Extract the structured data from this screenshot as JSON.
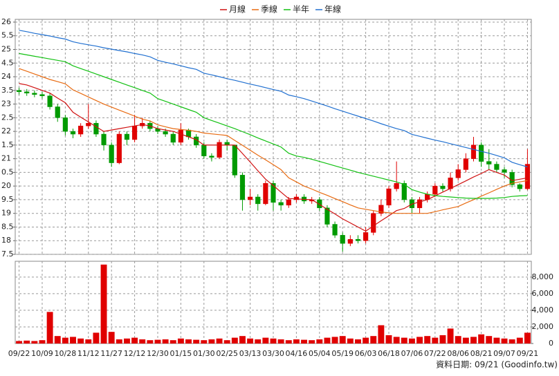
{
  "chart_data": [
    {
      "type": "candlestick",
      "categories": [
        "09/22",
        null,
        null,
        "10/09",
        null,
        null,
        "10/28",
        null,
        null,
        "11/12",
        null,
        null,
        "11/27",
        null,
        null,
        "12/12",
        null,
        null,
        "12/30",
        null,
        null,
        "01/15",
        null,
        null,
        "01/30",
        null,
        null,
        "02/25",
        null,
        null,
        "03/13",
        null,
        null,
        "03/30",
        null,
        null,
        "04/16",
        null,
        null,
        "05/04",
        null,
        null,
        "05/19",
        null,
        null,
        "06/03",
        null,
        null,
        "06/18",
        null,
        null,
        "07/06",
        null,
        null,
        "07/22",
        null,
        null,
        "08/06",
        null,
        null,
        "08/21",
        null,
        null,
        "09/07",
        null,
        null,
        "09/21"
      ],
      "open": [
        23.5,
        23.45,
        23.4,
        23.35,
        23.3,
        22.9,
        22.5,
        22.0,
        21.9,
        22.2,
        22.3,
        21.9,
        21.5,
        20.85,
        21.9,
        21.7,
        22.2,
        22.3,
        22.1,
        22.0,
        21.9,
        21.6,
        22.05,
        21.8,
        21.5,
        21.1,
        21.05,
        21.6,
        21.5,
        20.4,
        19.5,
        19.6,
        19.35,
        20.1,
        19.4,
        19.3,
        19.5,
        19.6,
        19.45,
        19.5,
        19.2,
        18.6,
        18.2,
        17.9,
        18.05,
        18.0,
        18.3,
        19.0,
        19.3,
        19.9,
        20.1,
        19.5,
        19.2,
        19.5,
        19.7,
        20.0,
        19.9,
        20.3,
        20.6,
        21.0,
        21.5,
        20.9,
        20.8,
        20.6,
        20.5,
        20.05,
        19.9
      ],
      "high": [
        23.6,
        23.55,
        23.5,
        23.45,
        23.4,
        23.0,
        22.6,
        22.1,
        22.3,
        23.0,
        22.4,
        22.0,
        21.6,
        22.0,
        22.0,
        22.6,
        22.5,
        22.4,
        22.2,
        22.1,
        22.0,
        22.3,
        22.1,
        21.9,
        21.6,
        21.2,
        21.7,
        21.7,
        21.5,
        20.5,
        19.9,
        19.7,
        20.2,
        20.2,
        19.5,
        19.6,
        19.7,
        19.7,
        19.6,
        19.6,
        19.3,
        18.7,
        18.3,
        18.2,
        18.2,
        18.5,
        19.1,
        19.5,
        20.0,
        20.9,
        20.2,
        19.6,
        19.6,
        19.8,
        20.1,
        20.1,
        20.5,
        20.8,
        21.2,
        21.8,
        21.6,
        21.35,
        20.9,
        20.7,
        20.6,
        20.1,
        21.35
      ],
      "low": [
        23.35,
        23.3,
        23.25,
        23.2,
        22.8,
        22.35,
        21.85,
        21.75,
        21.8,
        22.1,
        21.8,
        21.3,
        20.7,
        20.8,
        21.5,
        21.6,
        22.1,
        22.0,
        21.9,
        21.8,
        21.5,
        21.5,
        21.7,
        21.4,
        21.0,
        20.9,
        21.0,
        21.3,
        20.3,
        19.1,
        19.3,
        19.1,
        19.3,
        19.1,
        19.1,
        19.2,
        19.4,
        19.35,
        19.35,
        19.1,
        18.5,
        18.1,
        17.6,
        17.8,
        17.9,
        17.9,
        18.2,
        18.9,
        19.2,
        19.8,
        19.4,
        19.0,
        19.0,
        19.4,
        19.6,
        19.8,
        19.8,
        20.2,
        20.5,
        20.9,
        20.7,
        20.6,
        20.5,
        20.3,
        19.95,
        19.8,
        19.85
      ],
      "close": [
        23.45,
        23.4,
        23.35,
        23.3,
        22.9,
        22.5,
        22.0,
        21.9,
        22.2,
        22.3,
        21.9,
        21.5,
        20.85,
        21.9,
        21.7,
        22.2,
        22.3,
        22.1,
        22.0,
        21.9,
        21.6,
        22.05,
        21.8,
        21.5,
        21.1,
        21.05,
        21.6,
        21.5,
        20.4,
        19.5,
        19.6,
        19.35,
        20.1,
        19.4,
        19.3,
        19.5,
        19.6,
        19.45,
        19.5,
        19.2,
        18.6,
        18.2,
        17.9,
        18.05,
        18.0,
        18.3,
        19.0,
        19.3,
        19.9,
        20.1,
        19.5,
        19.2,
        19.5,
        19.7,
        20.0,
        19.9,
        20.3,
        20.6,
        21.0,
        21.5,
        20.9,
        20.8,
        20.6,
        20.5,
        20.05,
        19.9,
        20.8
      ],
      "up_color": "#e00000",
      "down_color": "#009a00",
      "series": [
        {
          "name": "月線",
          "color": "#d01010",
          "values": [
            23.75,
            23.7,
            23.6,
            23.5,
            23.4,
            23.22,
            23.05,
            22.7,
            22.52,
            22.35,
            22.17,
            22.0,
            22.05,
            22.1,
            22.15,
            22.2,
            22.25,
            22.2,
            22.1,
            22.05,
            22.0,
            21.9,
            21.8,
            21.7,
            21.5,
            21.5,
            21.5,
            21.5,
            21.5,
            21.19,
            20.88,
            20.56,
            20.25,
            20.02,
            19.78,
            19.54,
            19.53,
            19.51,
            19.5,
            19.33,
            19.15,
            18.98,
            18.8,
            18.65,
            18.5,
            18.35,
            18.54,
            18.73,
            18.91,
            19.1,
            19.18,
            19.34,
            19.42,
            19.5,
            19.64,
            19.78,
            19.91,
            20.05,
            20.19,
            20.33,
            20.46,
            20.6,
            20.5,
            20.4,
            20.2,
            20.25,
            20.3
          ]
        },
        {
          "name": "季線",
          "color": "#e86a10",
          "values": [
            24.3,
            24.2,
            24.1,
            24.0,
            23.9,
            23.82,
            23.74,
            23.52,
            23.39,
            23.26,
            23.13,
            23.0,
            22.89,
            22.78,
            22.67,
            22.56,
            22.45,
            22.38,
            22.24,
            22.17,
            22.1,
            22.07,
            22.04,
            22.0,
            21.94,
            21.91,
            21.88,
            21.85,
            21.67,
            21.49,
            21.31,
            21.13,
            20.96,
            20.78,
            20.6,
            20.3,
            20.15,
            20.0,
            19.89,
            19.77,
            19.66,
            19.54,
            19.43,
            19.31,
            19.2,
            19.15,
            19.1,
            19.05,
            19.02,
            19.0,
            19.0,
            19.0,
            19.0,
            19.0,
            19.06,
            19.13,
            19.19,
            19.25,
            19.38,
            19.5,
            19.63,
            19.75,
            19.88,
            20.0,
            20.1,
            20.15,
            20.2
          ]
        },
        {
          "name": "半年",
          "color": "#10c010",
          "values": [
            24.85,
            24.8,
            24.75,
            24.7,
            24.65,
            24.6,
            24.55,
            24.4,
            24.3,
            24.2,
            24.1,
            24.0,
            23.9,
            23.8,
            23.7,
            23.6,
            23.5,
            23.4,
            23.2,
            23.1,
            23.0,
            22.9,
            22.8,
            22.7,
            22.5,
            22.4,
            22.3,
            22.2,
            22.1,
            21.99,
            21.88,
            21.76,
            21.65,
            21.54,
            21.43,
            21.2,
            21.1,
            21.05,
            20.98,
            20.9,
            20.82,
            20.74,
            20.66,
            20.58,
            20.5,
            20.43,
            20.36,
            20.29,
            20.22,
            20.15,
            20.06,
            19.87,
            19.78,
            19.7,
            19.65,
            19.62,
            19.6,
            19.58,
            19.56,
            19.55,
            19.55,
            19.55,
            19.56,
            19.58,
            19.62,
            19.64,
            19.65
          ]
        },
        {
          "name": "年線",
          "color": "#1f6fd0",
          "values": [
            25.7,
            25.65,
            25.59,
            25.54,
            25.49,
            25.43,
            25.38,
            25.28,
            25.22,
            25.17,
            25.12,
            25.06,
            25.01,
            24.96,
            24.91,
            24.85,
            24.8,
            24.73,
            24.6,
            24.53,
            24.47,
            24.4,
            24.33,
            24.27,
            24.13,
            24.07,
            24.0,
            23.93,
            23.87,
            23.8,
            23.73,
            23.67,
            23.6,
            23.53,
            23.47,
            23.33,
            23.27,
            23.2,
            23.11,
            23.02,
            22.93,
            22.83,
            22.74,
            22.65,
            22.56,
            22.47,
            22.38,
            22.28,
            22.19,
            22.1,
            22.03,
            21.89,
            21.82,
            21.75,
            21.68,
            21.62,
            21.55,
            21.48,
            21.41,
            21.34,
            21.27,
            21.2,
            21.12,
            21.03,
            20.87,
            20.78,
            20.7
          ]
        }
      ],
      "ylim": [
        17.5,
        26.1
      ],
      "yticks": [
        26,
        {
          "value": 25.5,
          "label": "5.5"
        },
        25,
        {
          "value": 24.5,
          "label": "4.5"
        },
        24,
        {
          "value": 23.5,
          "label": "3.5"
        },
        23,
        {
          "value": 22.5,
          "label": "2.5"
        },
        22,
        {
          "value": 21.5,
          "label": "1.5"
        },
        21,
        {
          "value": 20.5,
          "label": "0.5"
        },
        20,
        {
          "value": 19.5,
          "label": "9.5"
        },
        19,
        {
          "value": 18.5,
          "label": "8.5"
        },
        18,
        {
          "value": 17.5,
          "label": "7.5"
        }
      ],
      "grid": true,
      "legend": "top"
    },
    {
      "type": "bar",
      "values": [
        300,
        350,
        300,
        400,
        3800,
        900,
        700,
        800,
        600,
        500,
        1300,
        9500,
        1400,
        500,
        600,
        700,
        500,
        400,
        450,
        500,
        400,
        600,
        500,
        450,
        400,
        500,
        600,
        400,
        700,
        900,
        600,
        500,
        700,
        600,
        500,
        400,
        500,
        450,
        400,
        500,
        700,
        800,
        900,
        600,
        500,
        700,
        900,
        2200,
        1000,
        800,
        700,
        600,
        800,
        900,
        700,
        1000,
        1800,
        900,
        700,
        800,
        1100,
        900,
        700,
        600,
        500,
        700,
        1300
      ],
      "color": "#e00000",
      "ylim": [
        0,
        9900
      ],
      "yticks": [
        0,
        {
          "value": 2000,
          "label": "2,000"
        },
        {
          "value": 4000,
          "label": "4,000"
        },
        {
          "value": 6000,
          "label": "6,000"
        },
        {
          "value": 8000,
          "label": "8,000"
        }
      ],
      "grid": true,
      "note": "資料日期: 09/21  (Goodinfo.tw)"
    }
  ]
}
